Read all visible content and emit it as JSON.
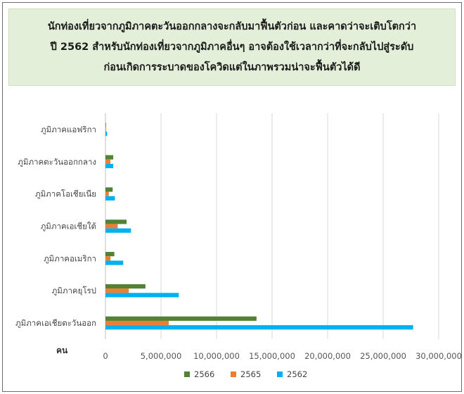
{
  "title_lines": [
    "นักท่องเที่ยวจากภูมิภาคตะวันออกกลางจะกลับมาฟื้นตัวก่อน และคาดว่าจะเติบโตกว่า",
    "ปี 2562 สำหรับนักท่องเที่ยวจากภูมิภาคอื่นๆ อาจต้องใช้เวลากว่าที่จะกลับไปสู่ระดับ",
    "ก่อนเกิดการระบาดของโควิดแต่ในภาพรวมน่าจะฟื้นตัวได้ดี"
  ],
  "chart_data": {
    "type": "bar",
    "orientation": "horizontal",
    "categories": [
      "ภูมิภาคแอฟริกา",
      "ภูมิภาคตะวันออกกลาง",
      "ภูมิภาคโอเชียเนีย",
      "ภูมิภาคเอเชียใต้",
      "ภูมิภาคอเมริกา",
      "ภูมิภาคยุโรป",
      "ภูมิภาคเอเชียตะวันออก"
    ],
    "series": [
      {
        "name": "2566",
        "color": "#548235",
        "values": [
          50000,
          700000,
          650000,
          1900000,
          800000,
          3600000,
          13600000
        ]
      },
      {
        "name": "2565",
        "color": "#ed7d31",
        "values": [
          20000,
          450000,
          300000,
          1100000,
          450000,
          2100000,
          5700000
        ]
      },
      {
        "name": "2562",
        "color": "#00b0f0",
        "values": [
          150000,
          700000,
          850000,
          2300000,
          1600000,
          6600000,
          27700000
        ]
      }
    ],
    "unit_label": "คน",
    "xlim": [
      0,
      30000000
    ],
    "x_ticks": [
      "0",
      "5,000,000",
      "10,000,000",
      "15,000,000",
      "20,000,000",
      "25,000,000",
      "30,000,000"
    ],
    "grid": true,
    "legend_position": "bottom",
    "legend_order": [
      "2566",
      "2565",
      "2562"
    ]
  }
}
